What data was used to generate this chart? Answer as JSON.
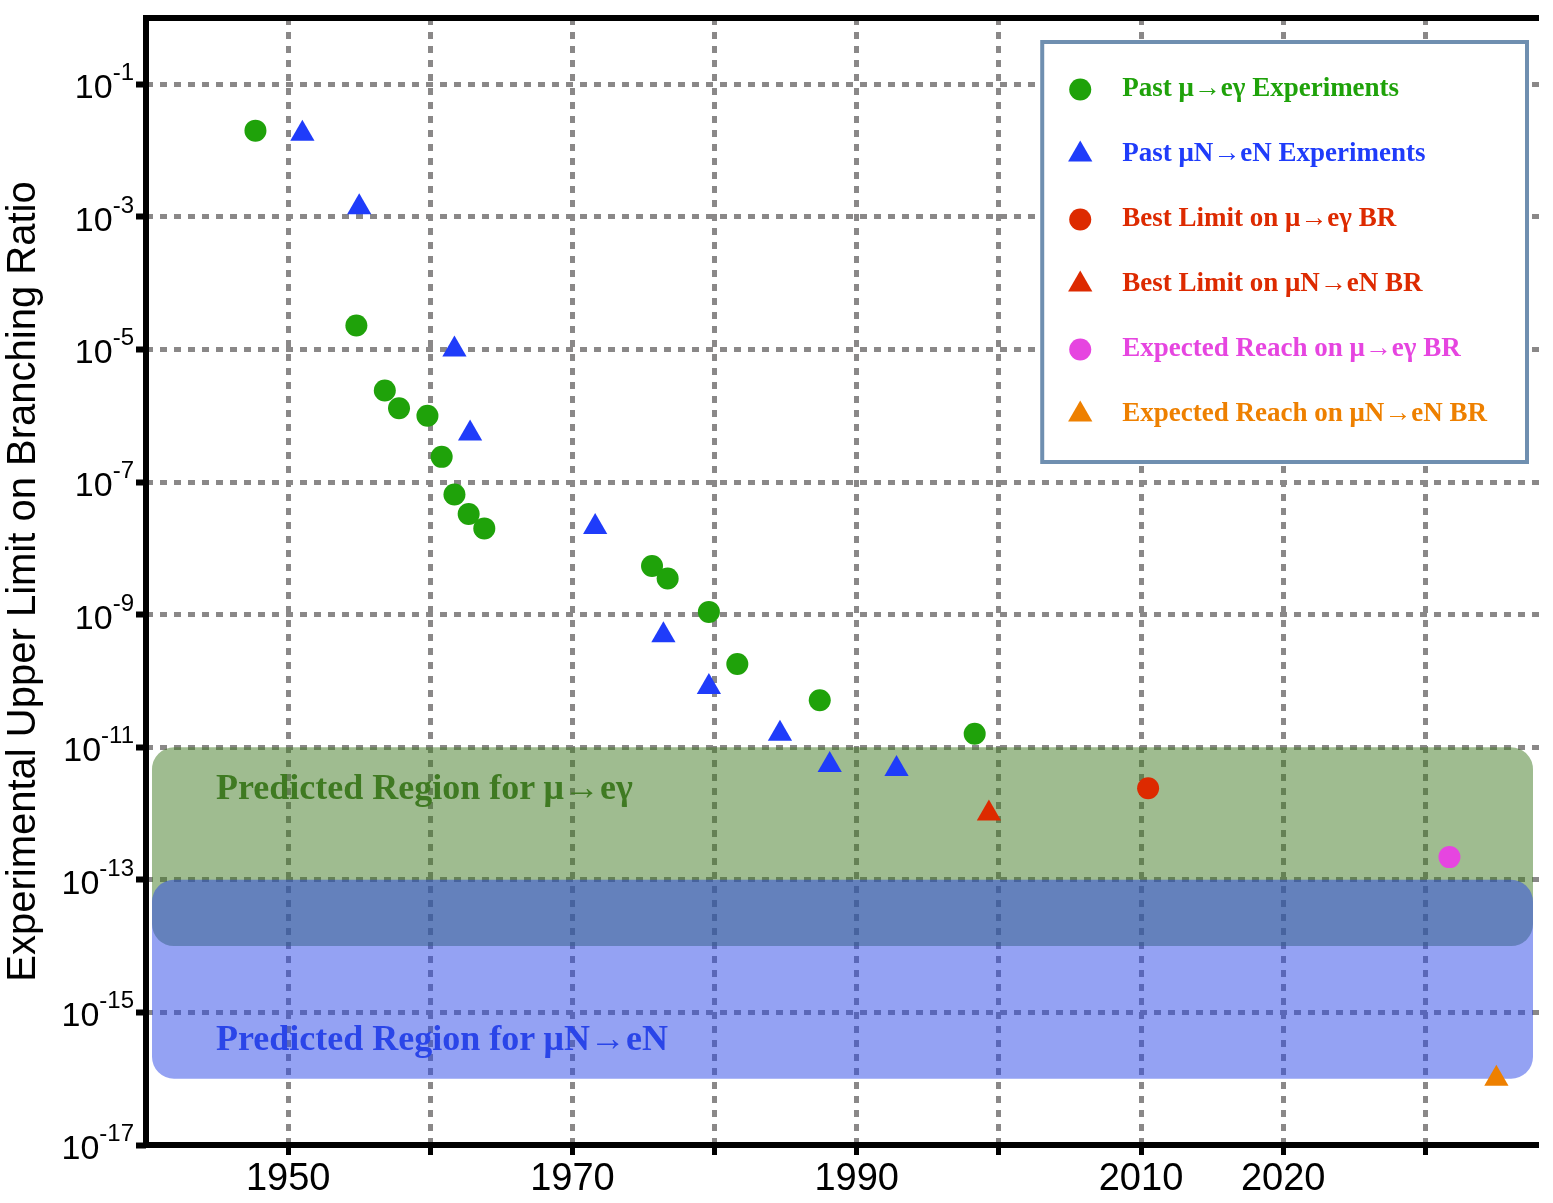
{
  "chart_data": {
    "type": "scatter",
    "ylabel": "Experimental Upper Limit on Branching Ratio",
    "xlim": [
      1940,
      2038
    ],
    "xticks": [
      1950,
      {
        "value": 1960,
        "label": null
      },
      1970,
      {
        "value": 1980,
        "label": null
      },
      1990,
      {
        "value": 2000,
        "label": null
      },
      2010,
      2020,
      {
        "value": 2030,
        "label": null
      }
    ],
    "ylim": [
      1e-17,
      1
    ],
    "log": "y",
    "yticks": [
      {
        "value": 0.1,
        "label": "10$^{-1}$"
      },
      {
        "value": 0.001,
        "label": "10$^{-3}$"
      },
      {
        "value": 1e-05,
        "label": "10$^{-5}$"
      },
      {
        "value": 1e-07,
        "label": "10$^{-7}$"
      },
      {
        "value": 1e-09,
        "label": "10$^{-9}$"
      },
      {
        "value": 1e-11,
        "label": "10$^{-11}$"
      },
      {
        "value": 1e-13,
        "label": "10$^{-13}$"
      },
      {
        "value": 1e-15,
        "label": "10$^{-15}$"
      },
      {
        "value": 1e-17,
        "label": "10$^{-17}$"
      }
    ],
    "grid": true,
    "legend": "top right",
    "series": [
      {
        "name": "Past μ→eγ Experiments",
        "color": "#1fa20a",
        "marker": "circle",
        "x": [
          1947.7,
          1954.8,
          1956.8,
          1957.8,
          1959.8,
          1960.8,
          1961.7,
          1962.7,
          1963.8,
          1975.6,
          1976.7,
          1979.6,
          1981.6,
          1987.4,
          1998.3
        ],
        "values": [
          0.02,
          2.3e-05,
          2.4e-06,
          1.3e-06,
          1e-06,
          2.4e-07,
          6.5e-08,
          3.3e-08,
          2e-08,
          5.4e-09,
          3.5e-09,
          1.1e-09,
          1.8e-10,
          5.1e-11,
          1.6e-11
        ]
      },
      {
        "name": "Past μN→eN Experiments",
        "color": "#1f3cfa",
        "marker": "triangle",
        "x": [
          1951.0,
          1955.0,
          1961.7,
          1962.8,
          1971.6,
          1976.4,
          1979.6,
          1984.6,
          1988.1,
          1992.8
        ],
        "values": [
          0.018,
          0.0014,
          1e-05,
          5.4e-07,
          2.1e-08,
          4.9e-10,
          8.1e-11,
          1.6e-11,
          5.4e-12,
          4.7e-12
        ]
      },
      {
        "name": "Best Limit on μ→eγ BR",
        "color": "#dd2a00",
        "marker": "circle",
        "x": [
          2010.5
        ],
        "values": [
          2.4e-12
        ]
      },
      {
        "name": "Best Limit on μN→eN BR",
        "color": "#dd2a00",
        "marker": "triangle",
        "x": [
          1999.3
        ],
        "values": [
          1e-12
        ]
      },
      {
        "name": "Expected Reach on μ→eγ BR",
        "color": "#e645e0",
        "marker": "circle",
        "x": [
          2031.7
        ],
        "values": [
          2.2e-13
        ]
      },
      {
        "name": "Expected Reach on μN→eN BR",
        "color": "#ee8000",
        "marker": "triangle",
        "x": [
          2035.0
        ],
        "values": [
          1e-16
        ]
      }
    ],
    "bands": [
      {
        "axis": "y",
        "from": 1e-14,
        "to": 1e-11,
        "label": "Predicted Region for μ→eγ",
        "color": "#3f7a22"
      },
      {
        "axis": "y",
        "from": 1e-16,
        "to": 1e-13,
        "label": "Predicted Region for μN→eN",
        "color": "#2a45e8"
      }
    ]
  }
}
